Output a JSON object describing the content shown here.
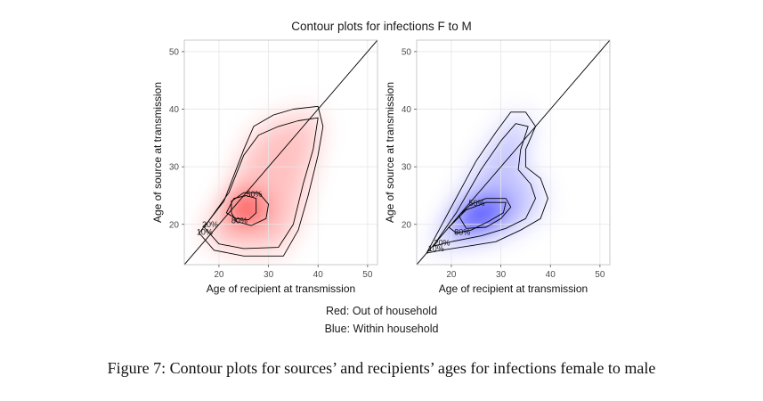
{
  "figure": {
    "title": "Contour plots for infections F to M",
    "legend_red": "Red: Out of household",
    "legend_blue": "Blue: Within household",
    "caption": "Figure 7: Contour plots for sources’ and recipients’ ages for infections female to male"
  },
  "chart_data": [
    {
      "type": "heatmap",
      "panel": "out-of-household",
      "color": "#ff0000",
      "xlabel": "Age of recipient at transmission",
      "ylabel": "Age of source at transmission",
      "xlim": [
        13,
        52
      ],
      "ylim": [
        13,
        52
      ],
      "xticks": [
        "20",
        "30",
        "40",
        "50"
      ],
      "yticks": [
        "20",
        "30",
        "40",
        "50"
      ],
      "diagonal": true,
      "grid": true,
      "density_peak": {
        "x": 25,
        "y": 22.5
      },
      "contours": [
        {
          "level": "10%",
          "label_at": [
            15.5,
            18.2
          ],
          "path": [
            [
              16,
              18.5
            ],
            [
              21,
              24
            ],
            [
              25,
              33
            ],
            [
              27,
              37
            ],
            [
              31,
              39
            ],
            [
              35,
              40
            ],
            [
              40,
              40.5
            ],
            [
              41,
              37
            ],
            [
              40,
              32
            ],
            [
              38,
              25
            ],
            [
              36,
              19
            ],
            [
              33,
              14.5
            ],
            [
              25,
              14.5
            ],
            [
              19,
              15.5
            ],
            [
              16,
              18.5
            ]
          ]
        },
        {
          "level": "20%",
          "label_at": [
            16.6,
            19.5
          ],
          "path": [
            [
              17,
              19.5
            ],
            [
              22,
              25.5
            ],
            [
              25,
              32
            ],
            [
              28,
              35.5
            ],
            [
              32,
              37
            ],
            [
              36,
              38
            ],
            [
              40,
              38.5
            ],
            [
              39,
              33
            ],
            [
              37,
              27
            ],
            [
              35,
              20
            ],
            [
              32,
              16
            ],
            [
              25,
              15.8
            ],
            [
              20,
              16.6
            ],
            [
              17,
              19.5
            ]
          ]
        },
        {
          "level": "50%",
          "label_at": [
            25.5,
            24.8
          ],
          "path": [
            [
              22.5,
              24
            ],
            [
              25,
              25.5
            ],
            [
              28,
              25.5
            ],
            [
              30,
              23.5
            ],
            [
              29.5,
              21
            ],
            [
              26.5,
              19.8
            ],
            [
              23.5,
              20.5
            ],
            [
              22.5,
              22
            ],
            [
              22.5,
              24
            ]
          ]
        },
        {
          "level": "80%",
          "label_at": [
            22.5,
            20.2
          ],
          "path": [
            [
              21.5,
              22
            ],
            [
              23,
              24.5
            ],
            [
              25.5,
              25
            ],
            [
              27.5,
              24.5
            ],
            [
              27.5,
              22
            ],
            [
              26,
              20.8
            ],
            [
              23.5,
              21
            ],
            [
              21.5,
              22
            ]
          ]
        }
      ]
    },
    {
      "type": "heatmap",
      "panel": "within-household",
      "color": "#0000ff",
      "xlabel": "Age of recipient at transmission",
      "ylabel": "Age of source at transmission",
      "xlim": [
        13,
        52
      ],
      "ylim": [
        13,
        52
      ],
      "xticks": [
        "20",
        "30",
        "40",
        "50"
      ],
      "yticks": [
        "20",
        "30",
        "40",
        "50"
      ],
      "diagonal": true,
      "grid": true,
      "density_peak": {
        "x": 25.5,
        "y": 21.5
      },
      "contours": [
        {
          "level": "10%",
          "label_at": [
            15.3,
            15.3
          ],
          "path": [
            [
              15,
              15
            ],
            [
              20,
              23
            ],
            [
              25,
              31
            ],
            [
              29,
              36
            ],
            [
              32,
              39.5
            ],
            [
              35,
              39.5
            ],
            [
              37,
              37
            ],
            [
              35,
              33
            ],
            [
              35,
              30
            ],
            [
              38,
              28
            ],
            [
              39.5,
              24.5
            ],
            [
              38,
              21
            ],
            [
              34,
              19
            ],
            [
              29,
              17
            ],
            [
              24,
              16.3
            ],
            [
              18,
              15.5
            ],
            [
              15,
              15
            ]
          ]
        },
        {
          "level": "20%",
          "label_at": [
            16.5,
            16.3
          ],
          "path": [
            [
              16.3,
              16.2
            ],
            [
              21,
              22
            ],
            [
              26,
              29.5
            ],
            [
              30,
              34.5
            ],
            [
              33,
              37.5
            ],
            [
              35.5,
              37
            ],
            [
              34,
              33
            ],
            [
              33.5,
              29.5
            ],
            [
              36,
              27
            ],
            [
              37,
              24.5
            ],
            [
              35,
              21
            ],
            [
              31,
              19.3
            ],
            [
              26,
              18
            ],
            [
              20,
              17
            ],
            [
              16.3,
              16.2
            ]
          ]
        },
        {
          "level": "50%",
          "label_at": [
            23.5,
            23.2
          ],
          "path": [
            [
              21.5,
              21.5
            ],
            [
              24,
              23.5
            ],
            [
              27,
              24.5
            ],
            [
              31,
              24.5
            ],
            [
              32,
              23
            ],
            [
              30,
              21
            ],
            [
              27,
              19.5
            ],
            [
              23,
              19.3
            ],
            [
              21.5,
              21.5
            ]
          ]
        },
        {
          "level": "80%",
          "label_at": [
            20.6,
            18.2
          ],
          "path": [
            [
              19.5,
              19.5
            ],
            [
              23,
              22.5
            ],
            [
              27,
              23.8
            ],
            [
              31,
              23.8
            ],
            [
              30.5,
              22
            ],
            [
              27.5,
              20.5
            ],
            [
              24,
              19
            ],
            [
              21,
              18.5
            ],
            [
              19.5,
              19.5
            ]
          ]
        }
      ]
    }
  ]
}
